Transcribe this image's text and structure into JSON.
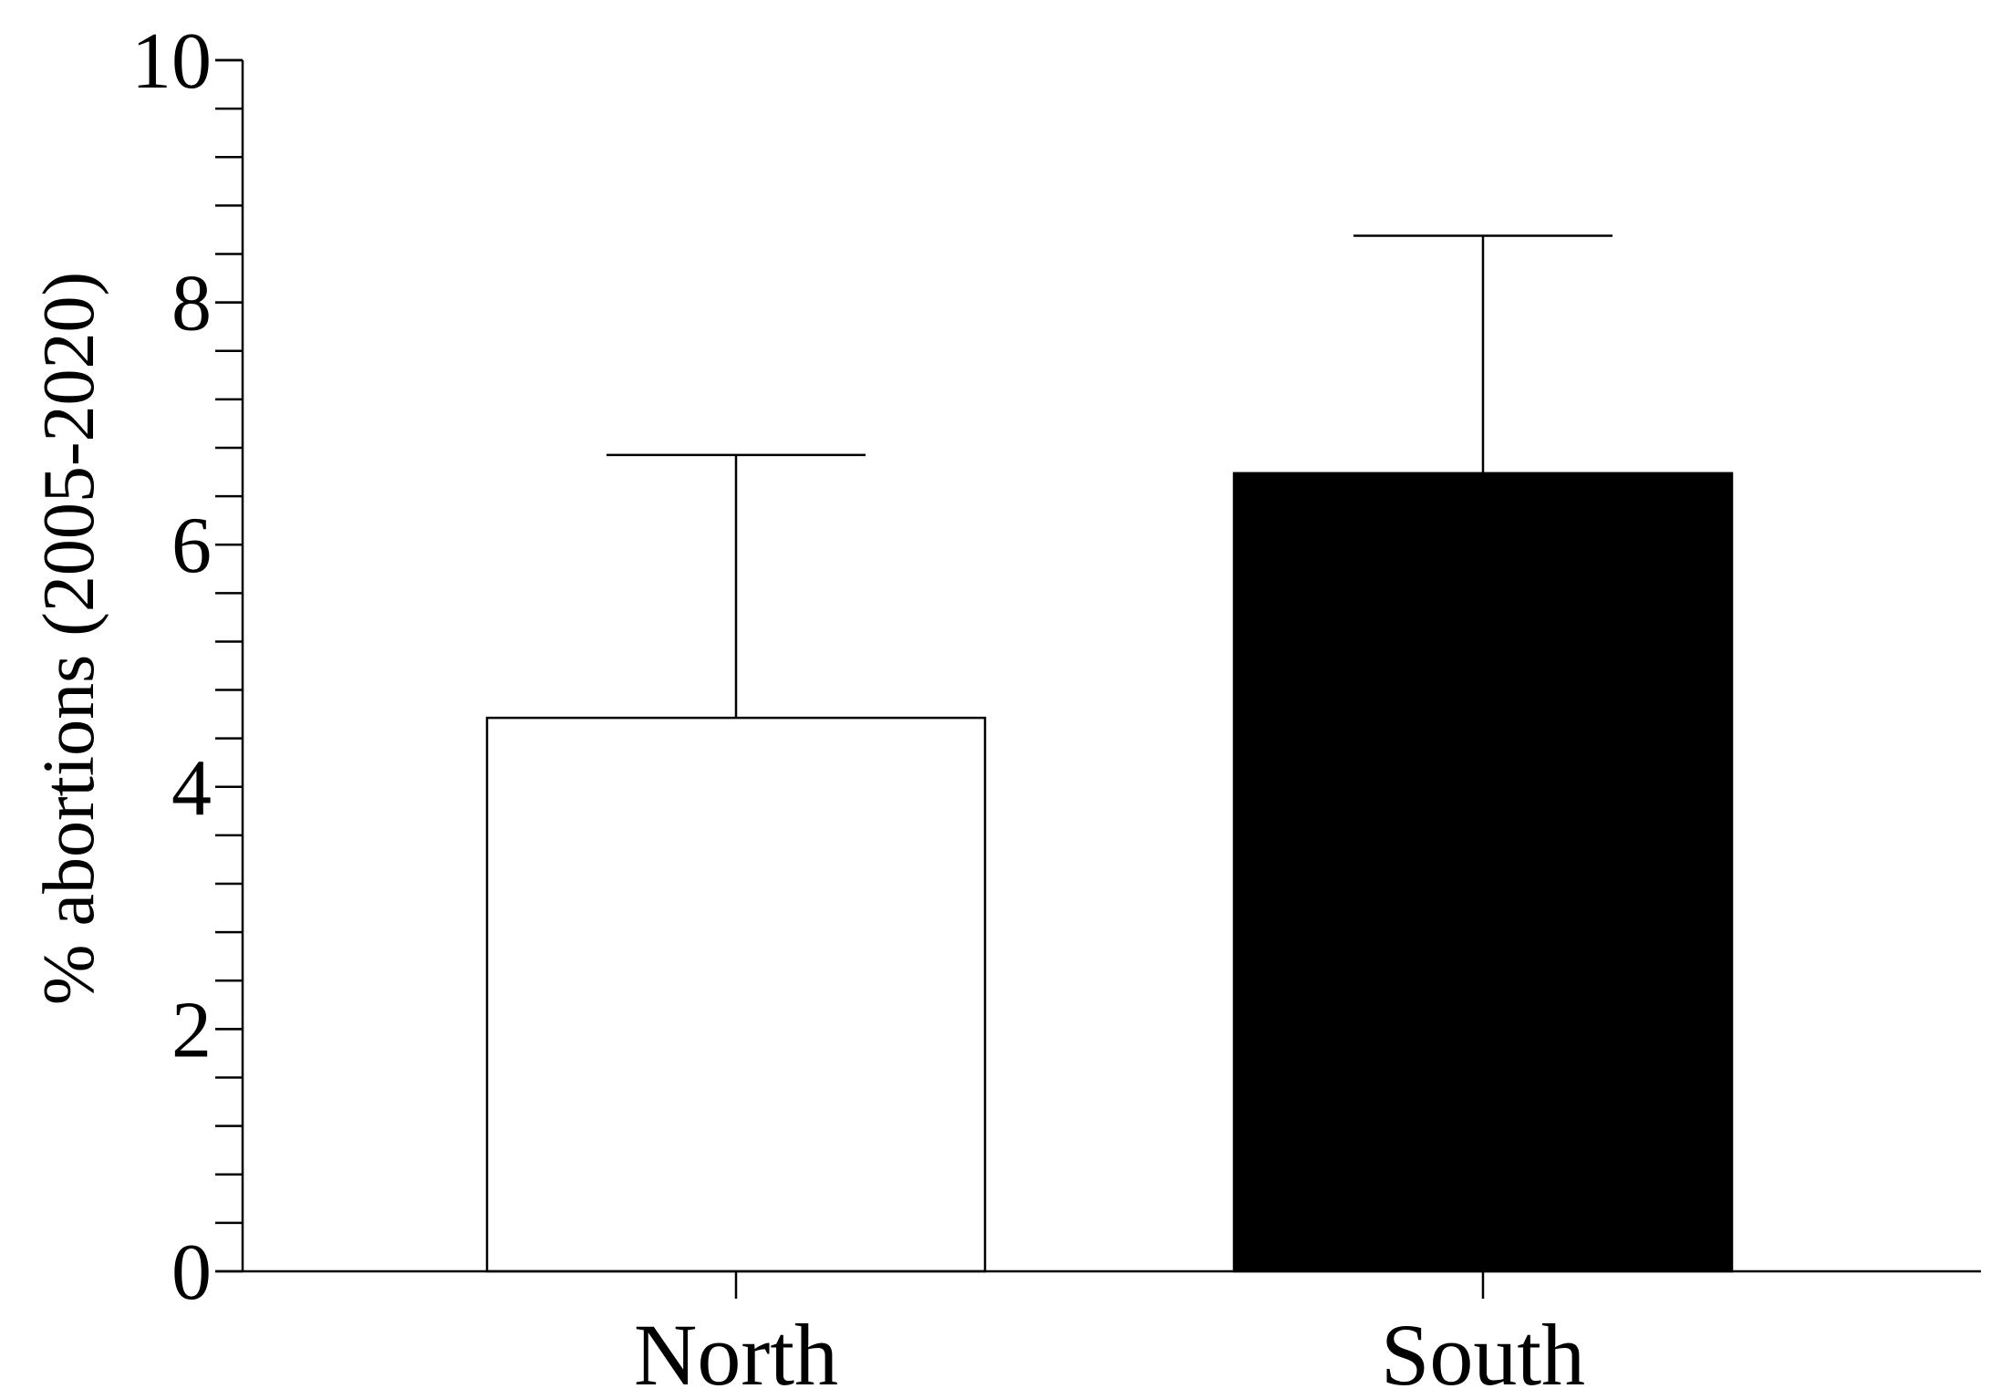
{
  "chart_data": {
    "type": "bar",
    "title": "",
    "xlabel": "",
    "ylabel": "% abortions (2005-2020)",
    "ylim": [
      0,
      10
    ],
    "y_major_ticks": [
      0,
      2,
      4,
      6,
      8,
      10
    ],
    "y_tick_labels": [
      "0",
      "2",
      "4",
      "6",
      "8",
      "10"
    ],
    "y_minor_step": 0.4,
    "grid": false,
    "legend": "none",
    "categories": [
      "North",
      "South"
    ],
    "values": [
      4.57,
      6.59
    ],
    "error_upper": [
      6.74,
      8.55
    ],
    "bar_colors": [
      "#ffffff",
      "#000000"
    ],
    "edge_color": "#000000"
  }
}
